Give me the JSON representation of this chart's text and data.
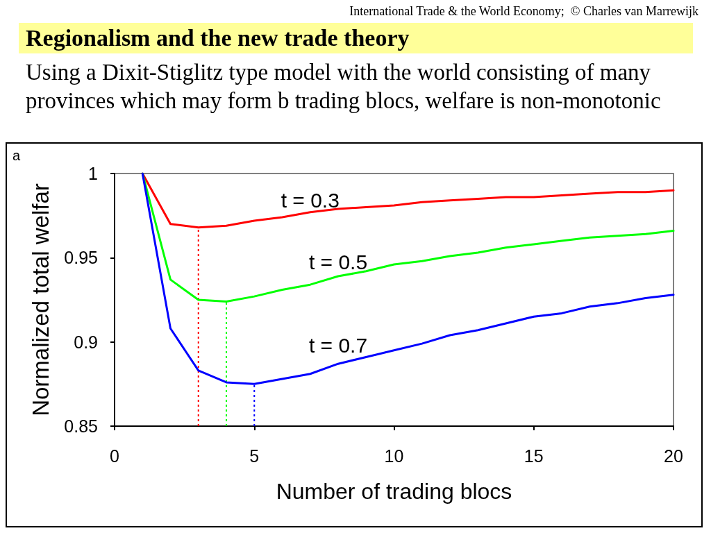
{
  "chart_data": {
    "type": "line",
    "title": "Regionalism and the new trade theory",
    "subtitle": "Using a Dixit-Stiglitz type model with the world consisting of many provinces which may form b trading blocs, welfare is non-monotonic",
    "xlabel": "Number of trading blocs",
    "ylabel": "Normalized total welfar",
    "annotations": [
      "International Trade & the World Economy;  © Charles van Marrewijk",
      "a"
    ],
    "x": [
      1,
      2,
      3,
      4,
      5,
      6,
      7,
      8,
      9,
      10,
      11,
      12,
      13,
      14,
      15,
      16,
      17,
      18,
      19,
      20
    ],
    "series": [
      {
        "name": "t = 0.3",
        "color": "#ff0000",
        "values": [
          1,
          0.97,
          0.968,
          0.969,
          0.972,
          0.974,
          0.977,
          0.979,
          0.98,
          0.981,
          0.983,
          0.984,
          0.985,
          0.986,
          0.986,
          0.987,
          0.988,
          0.989,
          0.989,
          0.99
        ]
      },
      {
        "name": "t = 0.5",
        "color": "#00ff00",
        "values": [
          1,
          0.937,
          0.925,
          0.924,
          0.927,
          0.931,
          0.934,
          0.939,
          0.942,
          0.946,
          0.948,
          0.951,
          0.953,
          0.956,
          0.958,
          0.96,
          0.962,
          0.963,
          0.964,
          0.966
        ]
      },
      {
        "name": "t = 0.7",
        "color": "#0000ff",
        "values": [
          1,
          0.908,
          0.883,
          0.876,
          0.875,
          0.878,
          0.881,
          0.887,
          0.891,
          0.895,
          0.899,
          0.904,
          0.907,
          0.911,
          0.915,
          0.917,
          0.921,
          0.923,
          0.926,
          0.928
        ]
      },
      {
        "color": "#ff0000",
        "x": [
          3,
          3
        ],
        "values": [
          0.85,
          0.968
        ],
        "line_style": "dotted"
      },
      {
        "color": "#00ff00",
        "x": [
          4,
          4
        ],
        "values": [
          0.85,
          0.924
        ],
        "line_style": "dotted"
      },
      {
        "color": "#0000ff",
        "x": [
          5,
          5
        ],
        "values": [
          0.85,
          0.875
        ],
        "line_style": "dotted"
      }
    ],
    "xlim": [
      0,
      20
    ],
    "xticks": [
      0,
      5,
      10,
      15,
      20
    ],
    "ylim": [
      0.85,
      1
    ],
    "yticks": [
      0.85,
      0.9,
      0.95,
      1
    ],
    "line_style": "solid"
  }
}
